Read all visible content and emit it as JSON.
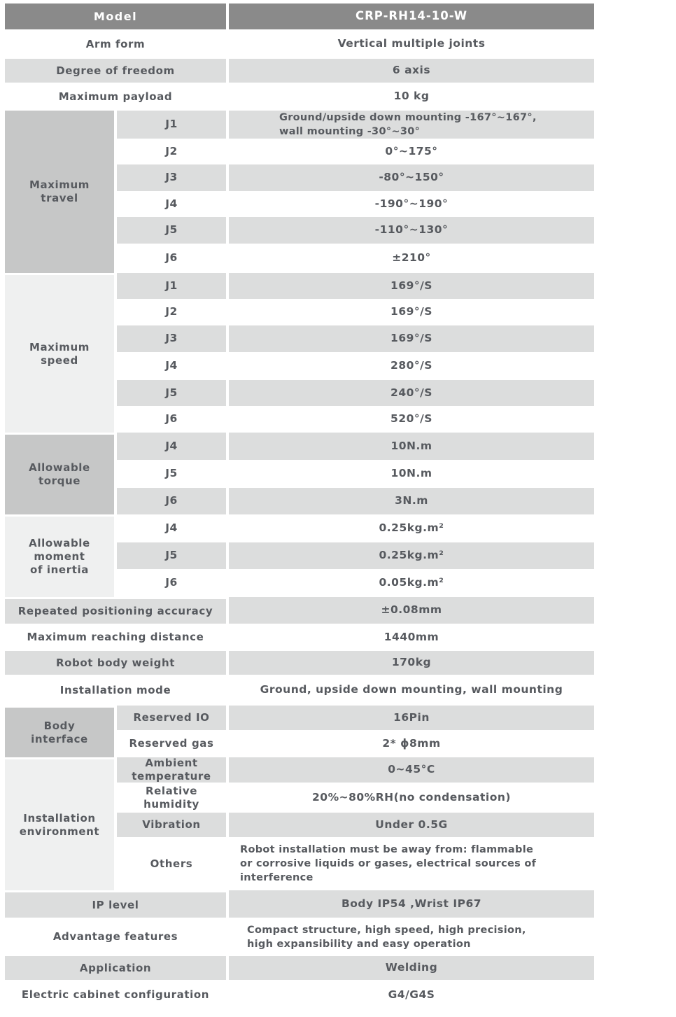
{
  "colors": {
    "header_bg": "#8a8a8a",
    "header_text": "#ffffff",
    "row_gray": "#dcdddd",
    "group_medium": "#c6c7c7",
    "group_light": "#eff0f0",
    "text": "#575a5f"
  },
  "model": {
    "label": "Model",
    "value": "CRP-RH14-10-W"
  },
  "rows": {
    "arm_form": {
      "label": "Arm form",
      "value": "Vertical multiple joints"
    },
    "degree_of_freedom": {
      "label": "Degree of freedom",
      "value": "6 axis"
    },
    "maximum_payload": {
      "label": "Maximum payload",
      "value": "10 kg"
    },
    "repeated_positioning_accuracy": {
      "label": "Repeated positioning accuracy",
      "value": "±0.08mm"
    },
    "maximum_reaching_distance": {
      "label": "Maximum reaching distance",
      "value": "1440mm"
    },
    "robot_body_weight": {
      "label": "Robot body weight",
      "value": "170kg"
    },
    "installation_mode": {
      "label": "Installation mode",
      "value": "Ground, upside down mounting, wall mounting"
    },
    "ip_level": {
      "label": "IP level",
      "value": "Body IP54 ,Wrist IP67"
    },
    "advantage_features": {
      "label": "Advantage features",
      "value": "Compact structure, high speed, high precision,\nhigh expansibility and easy operation"
    },
    "application": {
      "label": "Application",
      "value": "Welding"
    },
    "electric_cabinet_configuration": {
      "label": "Electric cabinet configuration",
      "value": "G4/G4S"
    }
  },
  "groups": {
    "maximum_travel": {
      "label": "Maximum\ntravel",
      "rows": [
        {
          "joint": "J1",
          "value": "Ground/upside down mounting -167°~167°,\nwall mounting -30°~30°"
        },
        {
          "joint": "J2",
          "value": "0°~175°"
        },
        {
          "joint": "J3",
          "value": "-80°~150°"
        },
        {
          "joint": "J4",
          "value": "-190°~190°"
        },
        {
          "joint": "J5",
          "value": "-110°~130°"
        },
        {
          "joint": "J6",
          "value": "±210°"
        }
      ]
    },
    "maximum_speed": {
      "label": "Maximum\nspeed",
      "rows": [
        {
          "joint": "J1",
          "value": "169°/S"
        },
        {
          "joint": "J2",
          "value": "169°/S"
        },
        {
          "joint": "J3",
          "value": "169°/S"
        },
        {
          "joint": "J4",
          "value": "280°/S"
        },
        {
          "joint": "J5",
          "value": "240°/S"
        },
        {
          "joint": "J6",
          "value": "520°/S"
        }
      ]
    },
    "allowable_torque": {
      "label": "Allowable\ntorque",
      "rows": [
        {
          "joint": "J4",
          "value": "10N.m"
        },
        {
          "joint": "J5",
          "value": "10N.m"
        },
        {
          "joint": "J6",
          "value": "3N.m"
        }
      ]
    },
    "allowable_moment_of_inertia": {
      "label": "Allowable\nmoment\nof inertia",
      "rows": [
        {
          "joint": "J4",
          "value": "0.25kg.m²"
        },
        {
          "joint": "J5",
          "value": "0.25kg.m²"
        },
        {
          "joint": "J6",
          "value": "0.05kg.m²"
        }
      ]
    },
    "body_interface": {
      "label": "Body\ninterface",
      "rows": [
        {
          "name": "Reserved IO",
          "value": "16Pin"
        },
        {
          "name": "Reserved gas",
          "value": "2* ϕ8mm"
        }
      ]
    },
    "installation_environment": {
      "label": "Installation\nenvironment",
      "rows": [
        {
          "name": "Ambient\ntemperature",
          "value": "0~45°C"
        },
        {
          "name": "Relative\nhumidity",
          "value": "20%~80%RH(no condensation)"
        },
        {
          "name": "Vibration",
          "value": "Under 0.5G"
        },
        {
          "name": "Others",
          "value": "Robot installation must be away from: flammable\nor corrosive liquids or gases, electrical sources of\ninterference"
        }
      ]
    }
  }
}
